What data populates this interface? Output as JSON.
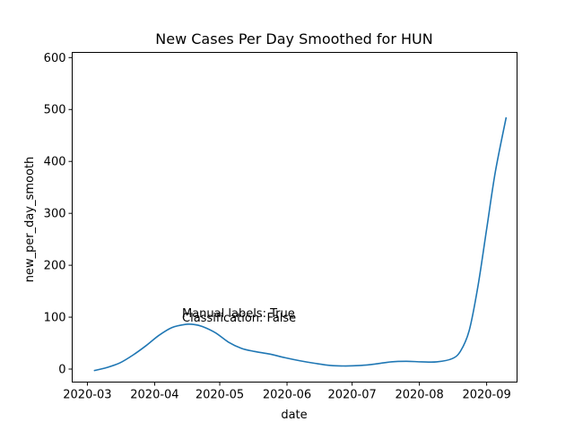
{
  "chart_data": {
    "type": "line",
    "title": "New Cases Per Day Smoothed for HUN",
    "xlabel": "date",
    "ylabel": "new_per_day_smooth",
    "x_ticks": [
      "2020-03",
      "2020-04",
      "2020-05",
      "2020-06",
      "2020-07",
      "2020-08",
      "2020-09"
    ],
    "y_ticks": [
      0,
      100,
      200,
      300,
      400,
      500,
      600
    ],
    "ylim": [
      -25,
      610
    ],
    "xlim": [
      "2020-02-23",
      "2020-09-15"
    ],
    "grid": false,
    "line_color": "#1f77b4",
    "annotations": [
      "Manual labels: True",
      "Classification: False"
    ],
    "series": [
      {
        "x": [
          "2020-03-04",
          "2020-03-10",
          "2020-03-16",
          "2020-03-22",
          "2020-03-28",
          "2020-04-03",
          "2020-04-09",
          "2020-04-15",
          "2020-04-19",
          "2020-04-23",
          "2020-04-29",
          "2020-05-05",
          "2020-05-11",
          "2020-05-17",
          "2020-05-24",
          "2020-05-31",
          "2020-06-07",
          "2020-06-14",
          "2020-06-21",
          "2020-06-28",
          "2020-07-05",
          "2020-07-12",
          "2020-07-19",
          "2020-07-26",
          "2020-08-02",
          "2020-08-09",
          "2020-08-16",
          "2020-08-20",
          "2020-08-24",
          "2020-08-28",
          "2020-09-01",
          "2020-09-05",
          "2020-09-10"
        ],
        "y": [
          -3,
          3,
          12,
          27,
          45,
          65,
          80,
          86,
          86,
          82,
          70,
          52,
          40,
          34,
          29,
          22,
          16,
          11,
          7,
          6,
          7,
          10,
          14,
          15,
          14,
          14,
          20,
          35,
          75,
          160,
          270,
          380,
          485
        ]
      }
    ]
  }
}
